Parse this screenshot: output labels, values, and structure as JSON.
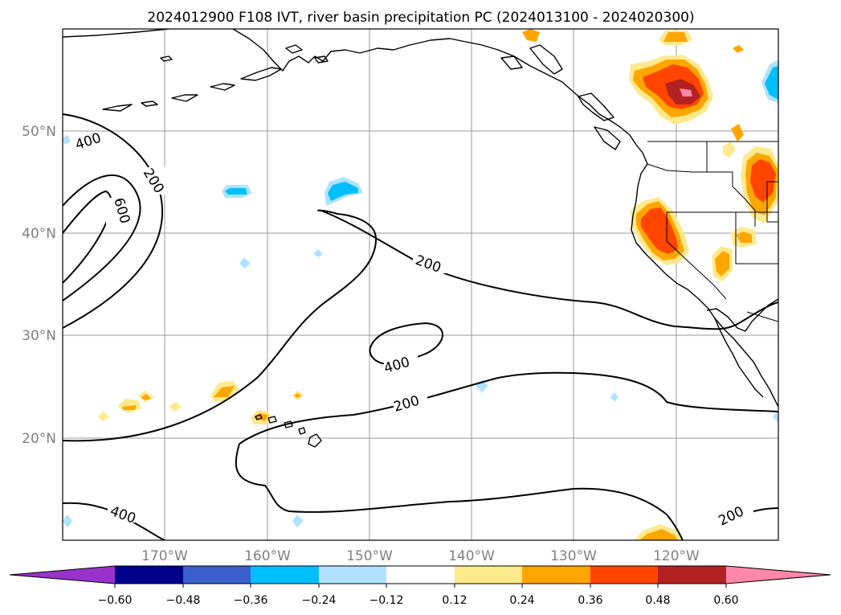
{
  "title": "2024012900 F108 IVT, river basin precipitation PC (2024013100 - 2024020300)",
  "lat_labels": [
    "50°N",
    "40°N",
    "30°N",
    "20°N"
  ],
  "lon_labels": [
    "170°W",
    "160°W",
    "150°W",
    "140°W",
    "130°W",
    "120°W"
  ],
  "contour_labels": [
    "400",
    "200",
    "600",
    "200",
    "400",
    "200",
    "400",
    "200"
  ],
  "colorbar": {
    "ticks": [
      "−0.60",
      "−0.48",
      "−0.36",
      "−0.24",
      "−0.12",
      "0.12",
      "0.24",
      "0.36",
      "0.48",
      "0.60"
    ],
    "colors": [
      "#9932cc",
      "#00008b",
      "#3a5fcd",
      "#00bfff",
      "#b0e2ff",
      "#ffffff",
      "#fee98c",
      "#ffa500",
      "#ff4500",
      "#b22222",
      "#ff88aa"
    ]
  },
  "chart_data": {
    "type": "map",
    "extent": {
      "lon_min": -180,
      "lon_max": -110,
      "lat_min": 10,
      "lat_max": 60
    },
    "ivt_contour_levels": [
      200,
      400,
      600
    ],
    "precip_pc_levels": [
      -0.6,
      -0.48,
      -0.36,
      -0.24,
      -0.12,
      0.12,
      0.24,
      0.36,
      0.48,
      0.6
    ]
  }
}
